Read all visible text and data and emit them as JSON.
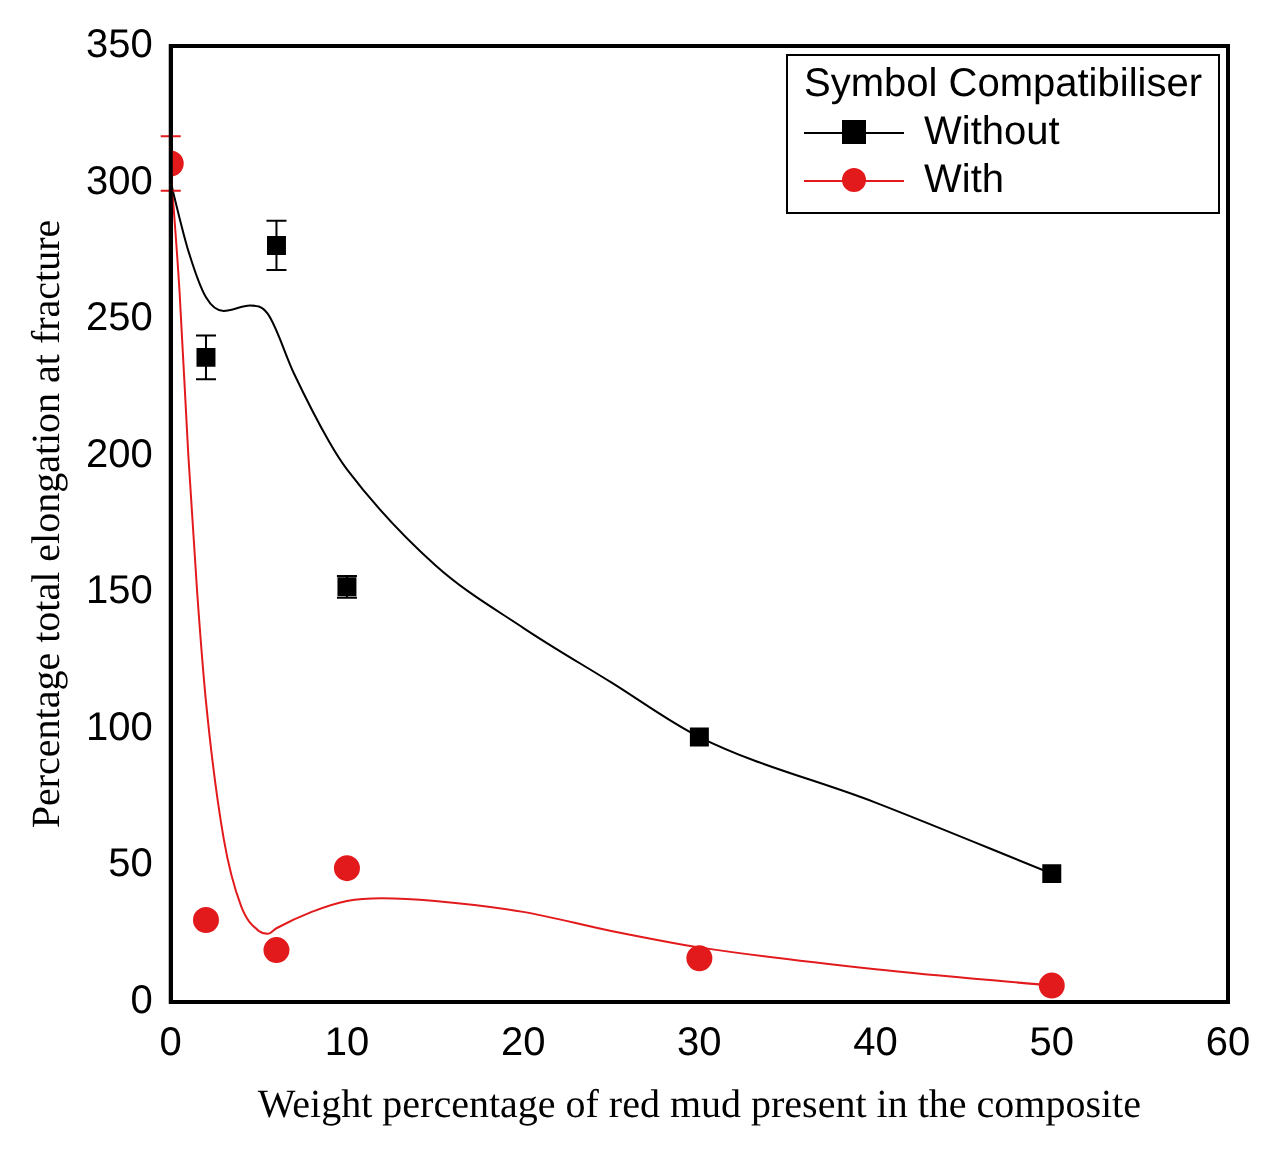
{
  "chart_data": {
    "type": "scatter",
    "xlabel": "Weight percentage of red mud present in the composite",
    "ylabel": "Percentage total elongation at fracture",
    "legend_title": "Symbol Compatibiliser",
    "legend": "top right",
    "grid": false,
    "xlim": [
      0,
      60
    ],
    "xticks": [
      0,
      10,
      20,
      30,
      40,
      50,
      60
    ],
    "ylim": [
      0,
      350
    ],
    "yticks": [
      0,
      50,
      100,
      150,
      200,
      250,
      300,
      350
    ],
    "series": [
      {
        "name": "Without",
        "color": "#000000",
        "marker": "square",
        "x": [
          2,
          6,
          10,
          30,
          50
        ],
        "values": [
          236,
          277,
          152,
          97,
          47
        ],
        "errors": [
          8,
          9,
          4,
          null,
          null
        ]
      },
      {
        "name": "With",
        "color": "#e31a1c",
        "marker": "circle",
        "x": [
          0,
          2,
          6,
          10,
          30,
          50
        ],
        "values": [
          307,
          30,
          19,
          49,
          16,
          6
        ],
        "errors": [
          10,
          null,
          null,
          null,
          null,
          null
        ]
      },
      {
        "type": "line",
        "color": "#000000",
        "marker": "none",
        "x": [
          0,
          1,
          2,
          3,
          4.5,
          5.5,
          7,
          9,
          10,
          15,
          20,
          25,
          30,
          40,
          50
        ],
        "values": [
          300,
          275,
          258,
          253,
          255,
          252,
          230,
          205,
          195,
          160,
          137,
          117,
          97,
          73,
          47
        ]
      },
      {
        "type": "line",
        "color": "#e31a1c",
        "marker": "none",
        "x": [
          0,
          0.5,
          1,
          1.5,
          2,
          3,
          4,
          5,
          5.5,
          6,
          8,
          10,
          12,
          15,
          20,
          25,
          30,
          40,
          50
        ],
        "values": [
          305,
          260,
          200,
          150,
          110,
          60,
          35,
          26,
          25,
          27,
          33,
          37,
          38,
          37,
          33,
          26,
          20,
          12,
          6
        ]
      }
    ]
  }
}
